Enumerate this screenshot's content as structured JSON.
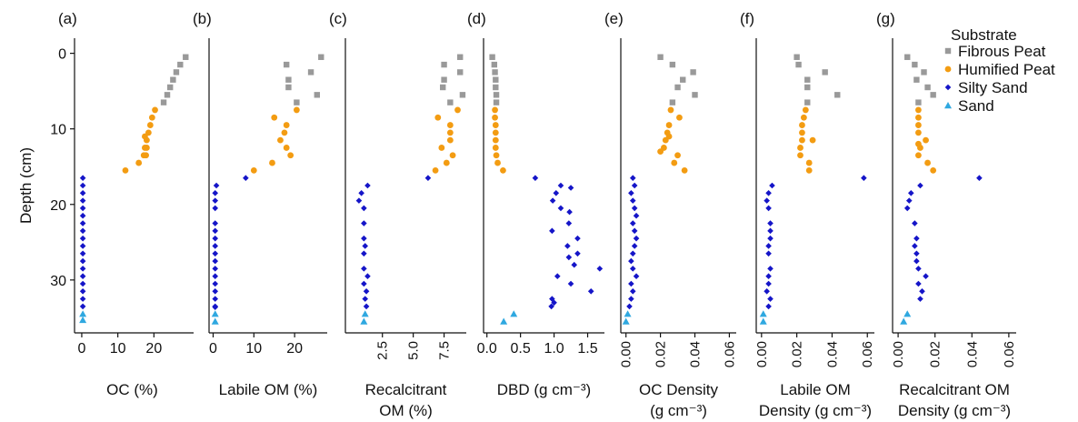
{
  "figure": {
    "y_axis_label": "Depth (cm)",
    "y_ticks": [
      0,
      10,
      20,
      30
    ],
    "ylim": [
      -2,
      37
    ],
    "y_inverted": true
  },
  "legend": {
    "title": "Substrate",
    "placement": "top-right",
    "items": [
      {
        "name": "Fibrous Peat",
        "color": "#999999",
        "marker": "square"
      },
      {
        "name": "Humified Peat",
        "color": "#F39C12",
        "marker": "circle"
      },
      {
        "name": "Silty Sand",
        "color": "#1515C8",
        "marker": "diamond"
      },
      {
        "name": "Sand",
        "color": "#2FA8E0",
        "marker": "triangle"
      }
    ]
  },
  "chart_data": [
    {
      "type": "scatter",
      "panel": "(a)",
      "xlabel": [
        "OC (%)"
      ],
      "xlim": [
        -2,
        31
      ],
      "x_ticks": [
        0,
        10,
        20
      ],
      "tick_rotation": 0,
      "series": [
        {
          "name": "Fibrous Peat",
          "x": [
            28.8,
            27.3,
            26.2,
            25.3,
            24.5,
            23.7,
            22.7
          ],
          "y": [
            0.5,
            1.5,
            2.5,
            3.5,
            4.5,
            5.5,
            6.5
          ]
        },
        {
          "name": "Humified Peat",
          "x": [
            20.3,
            19.5,
            19.0,
            18.5,
            18.0,
            18.0,
            17.8,
            17.5,
            17.5,
            17.2,
            15.8,
            12.1
          ],
          "y": [
            7.5,
            8.5,
            9.5,
            10.5,
            11.5,
            12.5,
            13.5,
            11,
            12.5,
            13.5,
            14.5,
            15.5
          ]
        },
        {
          "name": "Silty Sand",
          "x": [
            0.3,
            0.3,
            0.3,
            0.3,
            0.3,
            0.3,
            0.3,
            0.3,
            0.3,
            0.3,
            0.3,
            0.3,
            0.3,
            0.3,
            0.3,
            0.3,
            0.3,
            0.3
          ],
          "y": [
            16.5,
            17.5,
            18.5,
            19.5,
            20.5,
            21.5,
            22.5,
            23.5,
            24.5,
            25.5,
            26.5,
            27.5,
            28.5,
            29.5,
            30.5,
            31.5,
            32.5,
            33.5
          ]
        },
        {
          "name": "Sand",
          "x": [
            0.3,
            0.3
          ],
          "y": [
            34.5,
            35.3
          ]
        }
      ]
    },
    {
      "type": "scatter",
      "panel": "(b)",
      "xlabel": [
        "Labile OM (%)"
      ],
      "xlim": [
        -1,
        28
      ],
      "x_ticks": [
        0,
        10,
        20
      ],
      "tick_rotation": 0,
      "series": [
        {
          "name": "Fibrous Peat",
          "x": [
            26.5,
            18.0,
            24.0,
            18.5,
            25.5,
            20.5,
            18.5
          ],
          "y": [
            0.5,
            1.5,
            2.5,
            3.5,
            5.5,
            6.5,
            4.5
          ]
        },
        {
          "name": "Humified Peat",
          "x": [
            20.5,
            15.0,
            18.0,
            17.5,
            16.5,
            18.0,
            19.0,
            14.5,
            10.0
          ],
          "y": [
            7.5,
            8.5,
            9.5,
            10.5,
            11.5,
            12.5,
            13.5,
            14.5,
            15.5
          ]
        },
        {
          "name": "Silty Sand",
          "x": [
            8.0,
            0.8,
            0.5,
            0.5,
            0.5,
            0.5,
            0.5,
            0.5,
            0.5,
            0.5,
            0.5,
            0.5,
            0.5,
            0.5,
            0.5,
            0.5,
            0.5,
            0.5
          ],
          "y": [
            16.5,
            17.5,
            18.5,
            19.5,
            20.5,
            22.5,
            23.5,
            24.5,
            25.5,
            26.5,
            27.5,
            28.5,
            29.5,
            30.5,
            31.5,
            32.5,
            33.5,
            33.6
          ]
        },
        {
          "name": "Sand",
          "x": [
            0.5,
            0.5
          ],
          "y": [
            34.5,
            35.5
          ]
        }
      ]
    },
    {
      "type": "scatter",
      "panel": "(c)",
      "xlabel": [
        "Recalcitrant",
        "OM (%)"
      ],
      "xlim": [
        -0.5,
        9.3
      ],
      "x_ticks": [
        2.5,
        5.0,
        7.5
      ],
      "tick_rotation": -90,
      "series": [
        {
          "name": "Fibrous Peat",
          "x": [
            8.8,
            7.5,
            8.8,
            7.5,
            9.0,
            8.0,
            7.4
          ],
          "y": [
            0.5,
            1.5,
            2.5,
            3.5,
            5.5,
            6.5,
            4.5
          ]
        },
        {
          "name": "Humified Peat",
          "x": [
            8.6,
            7.0,
            8.0,
            8.0,
            8.0,
            7.3,
            8.2,
            7.7,
            6.8
          ],
          "y": [
            7.5,
            8.5,
            9.5,
            10.5,
            11.5,
            12.5,
            13.5,
            14.5,
            15.5
          ]
        },
        {
          "name": "Silty Sand",
          "x": [
            6.2,
            1.3,
            0.8,
            0.6,
            1.0,
            1.0,
            1.0,
            1.0,
            1.0,
            1.0,
            1.1,
            1.2,
            1.1,
            1.3,
            1.2
          ],
          "y": [
            16.5,
            17.5,
            18.5,
            19.5,
            20.5,
            22.5,
            24.5,
            26.5,
            28.5,
            30.5,
            32.5,
            33.5,
            25.5,
            29.5,
            31.5
          ]
        },
        {
          "name": "Sand",
          "x": [
            1.1,
            1.0
          ],
          "y": [
            34.5,
            35.5
          ]
        }
      ]
    },
    {
      "type": "scatter",
      "panel": "(d)",
      "xlabel": [
        "DBD (g cm⁻³)"
      ],
      "xlim": [
        -0.05,
        1.75
      ],
      "x_ticks": [
        0.0,
        0.5,
        1.0,
        1.5
      ],
      "tick_rotation": 0,
      "series": [
        {
          "name": "Fibrous Peat",
          "x": [
            0.08,
            0.11,
            0.12,
            0.13,
            0.13,
            0.14,
            0.14
          ],
          "y": [
            0.5,
            1.5,
            2.5,
            3.5,
            4.5,
            5.5,
            6.5
          ]
        },
        {
          "name": "Humified Peat",
          "x": [
            0.12,
            0.12,
            0.13,
            0.13,
            0.13,
            0.13,
            0.14,
            0.16,
            0.24
          ],
          "y": [
            7.5,
            8.5,
            9.5,
            10.5,
            11.5,
            12.5,
            13.5,
            14.5,
            15.5
          ]
        },
        {
          "name": "Silty Sand",
          "x": [
            0.72,
            1.1,
            1.25,
            1.03,
            0.98,
            1.1,
            1.23,
            1.22,
            0.97,
            1.35,
            1.2,
            1.35,
            1.22,
            1.3,
            1.68,
            1.05,
            1.25,
            1.55,
            0.97,
            1.0,
            0.96
          ],
          "y": [
            16.5,
            17.5,
            17.8,
            18.5,
            19.5,
            20.5,
            21.0,
            22.5,
            23.5,
            24.5,
            25.5,
            26.5,
            27.0,
            28.0,
            28.5,
            29.5,
            30.5,
            31.5,
            32.5,
            33.0,
            33.5
          ]
        },
        {
          "name": "Sand",
          "x": [
            0.4,
            0.25
          ],
          "y": [
            34.5,
            35.5
          ]
        }
      ]
    },
    {
      "type": "scatter",
      "panel": "(e)",
      "xlabel": [
        "OC Density",
        "(g cm⁻³)"
      ],
      "xlim": [
        -0.003,
        0.064
      ],
      "x_ticks": [
        0.0,
        0.02,
        0.04,
        0.06
      ],
      "tick_rotation": -90,
      "series": [
        {
          "name": "Fibrous Peat",
          "x": [
            0.02,
            0.027,
            0.039,
            0.033,
            0.03,
            0.04,
            0.027
          ],
          "y": [
            0.5,
            1.5,
            2.5,
            3.5,
            4.5,
            5.5,
            6.5
          ]
        },
        {
          "name": "Humified Peat",
          "x": [
            0.026,
            0.031,
            0.025,
            0.024,
            0.023,
            0.022,
            0.03,
            0.02,
            0.025,
            0.028,
            0.034
          ],
          "y": [
            7.5,
            8.5,
            9.5,
            10.5,
            11.5,
            12.5,
            13.5,
            13.0,
            11.0,
            14.5,
            15.5
          ]
        },
        {
          "name": "Silty Sand",
          "x": [
            0.004,
            0.005,
            0.003,
            0.004,
            0.005,
            0.006,
            0.004,
            0.005,
            0.006,
            0.005,
            0.004,
            0.003,
            0.004,
            0.006,
            0.003,
            0.004,
            0.003,
            0.002
          ],
          "y": [
            16.5,
            17.5,
            18.5,
            19.5,
            20.5,
            21.5,
            22.5,
            23.5,
            24.5,
            25.5,
            26.5,
            27.5,
            28.5,
            29.5,
            30.5,
            31.5,
            32.5,
            33.5
          ]
        },
        {
          "name": "Sand",
          "x": [
            0.001,
            0.0
          ],
          "y": [
            34.5,
            35.5
          ]
        }
      ]
    },
    {
      "type": "scatter",
      "panel": "(f)",
      "xlabel": [
        "Labile OM",
        "Density (g cm⁻³)"
      ],
      "xlim": [
        -0.003,
        0.064
      ],
      "x_ticks": [
        0.0,
        0.02,
        0.04,
        0.06
      ],
      "tick_rotation": -90,
      "series": [
        {
          "name": "Fibrous Peat",
          "x": [
            0.02,
            0.021,
            0.036,
            0.026,
            0.026,
            0.043,
            0.026
          ],
          "y": [
            0.5,
            1.5,
            2.5,
            3.5,
            4.5,
            5.5,
            6.5
          ]
        },
        {
          "name": "Humified Peat",
          "x": [
            0.025,
            0.024,
            0.023,
            0.023,
            0.023,
            0.022,
            0.022,
            0.029,
            0.027,
            0.027
          ],
          "y": [
            7.5,
            8.5,
            9.5,
            10.5,
            11.5,
            12.5,
            13.5,
            11.5,
            14.5,
            15.5
          ]
        },
        {
          "name": "Silty Sand",
          "x": [
            0.058,
            0.006,
            0.004,
            0.003,
            0.004,
            0.005,
            0.005,
            0.004,
            0.005,
            0.004,
            0.005,
            0.004,
            0.005,
            0.004,
            0.004,
            0.003
          ],
          "y": [
            16.5,
            17.5,
            18.5,
            19.5,
            20.5,
            22.5,
            24.5,
            26.5,
            28.5,
            30.5,
            32.5,
            33.5,
            23.5,
            25.5,
            29.5,
            31.5
          ]
        },
        {
          "name": "Sand",
          "x": [
            0.001,
            0.001
          ],
          "y": [
            34.5,
            35.5
          ]
        }
      ]
    },
    {
      "type": "scatter",
      "panel": "(g)",
      "xlabel": [
        "Recalcitrant OM",
        "Density (g cm⁻³)"
      ],
      "xlim": [
        -0.003,
        0.064
      ],
      "x_ticks": [
        0.0,
        0.02,
        0.04,
        0.06
      ],
      "tick_rotation": -90,
      "series": [
        {
          "name": "Fibrous Peat",
          "x": [
            0.005,
            0.009,
            0.014,
            0.01,
            0.016,
            0.019,
            0.011
          ],
          "y": [
            0.5,
            1.5,
            2.5,
            3.5,
            4.5,
            5.5,
            6.5
          ]
        },
        {
          "name": "Humified Peat",
          "x": [
            0.011,
            0.011,
            0.011,
            0.011,
            0.015,
            0.012,
            0.011,
            0.016,
            0.019,
            0.011
          ],
          "y": [
            7.5,
            8.5,
            9.5,
            10.5,
            11.5,
            12.5,
            13.5,
            14.5,
            15.5,
            12.0
          ]
        },
        {
          "name": "Silty Sand",
          "x": [
            0.044,
            0.012,
            0.007,
            0.006,
            0.005,
            0.009,
            0.01,
            0.01,
            0.011,
            0.011,
            0.015,
            0.013,
            0.012,
            0.009,
            0.01
          ],
          "y": [
            16.5,
            17.5,
            18.5,
            19.5,
            20.5,
            22.5,
            24.5,
            26.5,
            28.5,
            30.5,
            29.5,
            31.5,
            32.5,
            25.5,
            27.5
          ]
        },
        {
          "name": "Sand",
          "x": [
            0.005,
            0.003
          ],
          "y": [
            34.5,
            35.5
          ]
        }
      ]
    }
  ]
}
